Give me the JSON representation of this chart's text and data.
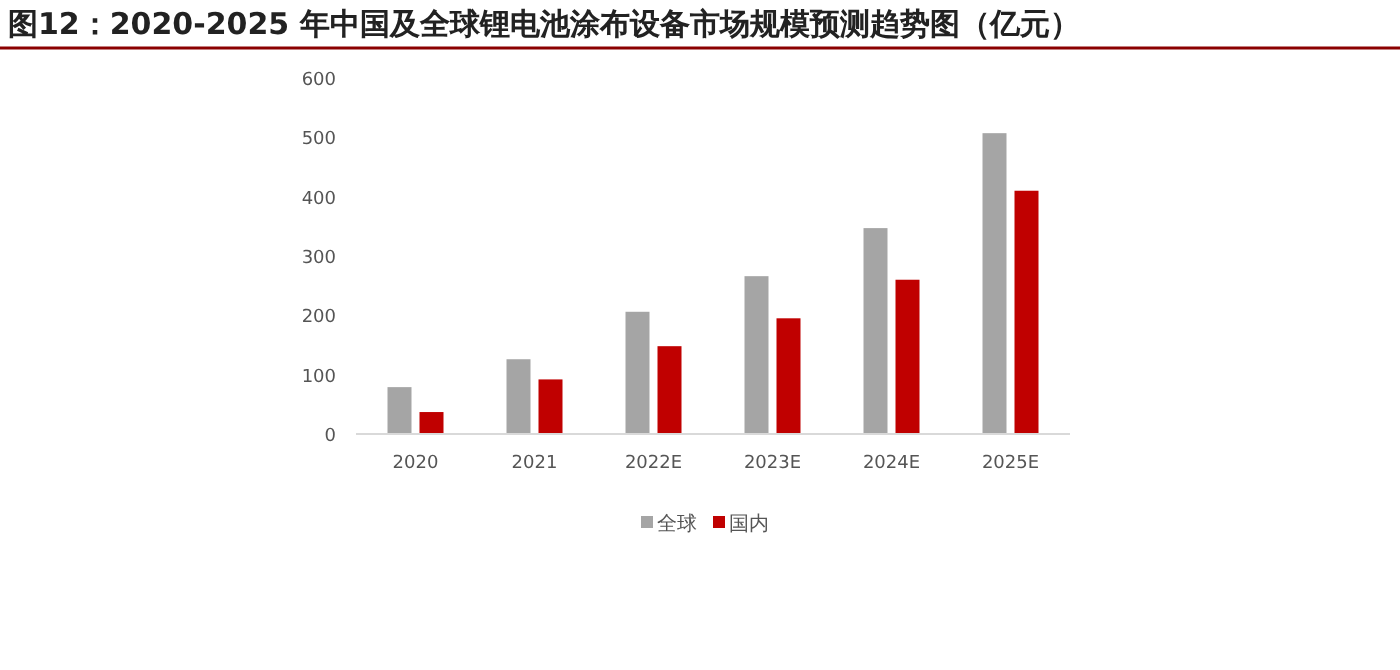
{
  "chart_data": {
    "type": "bar",
    "title": "图12：2020-2025 年中国及全球锂电池涂布设备市场规模预测趋势图（亿元）",
    "categories": [
      "2020",
      "2021",
      "2022E",
      "2023E",
      "2024E",
      "2025E"
    ],
    "series": [
      {
        "name": "全球",
        "color": "#a5a5a5",
        "values": [
          79,
          126,
          206,
          266,
          347,
          507
        ]
      },
      {
        "name": "国内",
        "color": "#c00000",
        "values": [
          37,
          92,
          148,
          195,
          260,
          410
        ]
      }
    ],
    "ylim": [
      0,
      600
    ],
    "yticks": [
      0,
      100,
      200,
      300,
      400,
      500,
      600
    ],
    "grid": false,
    "legend": "bottom"
  }
}
